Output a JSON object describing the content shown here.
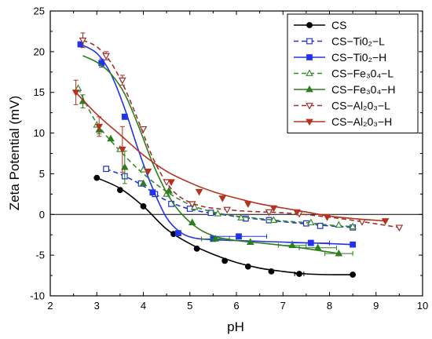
{
  "chart_data": {
    "type": "line",
    "xlabel": "pH",
    "ylabel": "Zeta Potential (mV)",
    "xlim": [
      2,
      10
    ],
    "ylim": [
      -10,
      25
    ],
    "xticks": [
      2,
      3,
      4,
      5,
      6,
      7,
      8,
      9,
      10
    ],
    "yticks": [
      -10,
      -5,
      0,
      5,
      10,
      15,
      20,
      25
    ],
    "zero_line": true,
    "legend_position": "top-right",
    "series": [
      {
        "name": "CS",
        "color": "#000000",
        "marker": "circle",
        "filled": true,
        "dashed": false,
        "x": [
          3.0,
          3.5,
          4.0,
          4.65,
          5.15,
          5.75,
          6.25,
          6.75,
          7.35,
          8.5
        ],
        "y": [
          4.5,
          3.0,
          1.0,
          -2.4,
          -4.2,
          -5.7,
          -6.4,
          -7.0,
          -7.3,
          -7.4
        ],
        "xerr": [
          0,
          0,
          0,
          0,
          0,
          0,
          0,
          0,
          0.1,
          0
        ],
        "yerr": [
          0,
          0,
          0,
          0,
          0,
          0,
          0,
          0,
          0,
          0
        ],
        "curve_x": [
          3.0,
          3.5,
          4.0,
          4.5,
          5.0,
          5.5,
          6.0,
          6.5,
          7.0,
          7.5,
          8.0,
          8.5
        ],
        "curve_y": [
          4.5,
          3.2,
          1.0,
          -1.8,
          -3.6,
          -4.9,
          -5.9,
          -6.6,
          -7.0,
          -7.3,
          -7.4,
          -7.4
        ]
      },
      {
        "name": "CS−Ti0₂−L",
        "color": "#2233cc",
        "marker": "square",
        "filled": false,
        "dashed": true,
        "x": [
          3.2,
          3.6,
          3.95,
          4.25,
          4.6,
          5.0,
          5.45,
          6.2,
          6.7,
          7.5,
          7.8,
          8.5
        ],
        "y": [
          5.6,
          4.7,
          3.8,
          2.5,
          1.3,
          0.7,
          0.2,
          -0.5,
          -0.7,
          -1.1,
          -1.4,
          -1.6
        ],
        "xerr": [
          0,
          0,
          0,
          0,
          0,
          0,
          0,
          0,
          0,
          0,
          0,
          0
        ],
        "yerr": [
          0,
          0,
          0,
          0,
          0,
          0,
          0,
          0,
          0,
          0,
          0,
          0
        ],
        "curve_x": [
          3.2,
          3.6,
          4.0,
          4.4,
          4.8,
          5.2,
          5.8,
          6.5,
          7.2,
          8.0,
          8.5
        ],
        "curve_y": [
          5.6,
          4.7,
          3.5,
          2.0,
          1.0,
          0.4,
          -0.1,
          -0.6,
          -1.0,
          -1.4,
          -1.6
        ]
      },
      {
        "name": "CS−Ti0₂−H",
        "color": "#2233ee",
        "marker": "square",
        "filled": true,
        "dashed": false,
        "x": [
          2.65,
          3.1,
          3.6,
          4.2,
          4.75,
          5.5,
          6.05,
          7.6,
          8.5
        ],
        "y": [
          20.9,
          18.6,
          12.0,
          2.7,
          -2.3,
          -3.0,
          -2.7,
          -3.5,
          -3.7
        ],
        "xerr": [
          0,
          0,
          0,
          0,
          0,
          0,
          0.6,
          0.4,
          0
        ],
        "yerr": [
          0.3,
          0.5,
          0,
          0,
          0,
          0,
          0,
          0,
          0
        ],
        "curve_x": [
          2.65,
          3.0,
          3.3,
          3.6,
          3.9,
          4.2,
          4.5,
          4.8,
          5.1,
          5.5,
          6.0,
          6.5,
          7.0,
          7.6,
          8.5
        ],
        "curve_y": [
          20.9,
          19.8,
          17.3,
          13.0,
          7.8,
          3.2,
          -0.4,
          -2.2,
          -2.9,
          -3.1,
          -3.2,
          -3.3,
          -3.4,
          -3.5,
          -3.7
        ]
      },
      {
        "name": "CS−Fe₃0₄−L",
        "color": "#3a8a2e",
        "marker": "triangle-up",
        "filled": false,
        "dashed": true,
        "x": [
          2.6,
          3.0,
          3.5,
          4.0,
          4.5,
          5.1,
          5.6,
          6.1,
          6.8,
          7.6,
          8.2,
          8.5
        ],
        "y": [
          15.5,
          11.0,
          8.0,
          5.5,
          2.5,
          0.9,
          0.1,
          -0.4,
          -0.7,
          -1.0,
          -1.3,
          -1.5
        ],
        "xerr": [
          0,
          0,
          0,
          0,
          0,
          0,
          0,
          0,
          0,
          0,
          0,
          0
        ],
        "yerr": [
          0,
          0,
          0,
          0,
          0,
          0,
          0,
          0,
          0,
          0,
          0,
          0
        ],
        "curve_x": [
          2.6,
          3.0,
          3.5,
          4.0,
          4.5,
          5.0,
          5.5,
          6.0,
          6.5,
          7.0,
          7.5,
          8.0,
          8.5
        ],
        "curve_y": [
          15.5,
          11.2,
          7.8,
          5.0,
          2.8,
          1.2,
          0.3,
          -0.2,
          -0.5,
          -0.8,
          -1.0,
          -1.3,
          -1.5
        ]
      },
      {
        "name": "CS−Fe₃0₄−H",
        "color": "#2e7d1e",
        "marker": "triangle-up",
        "filled": true,
        "dashed": false,
        "x": [
          2.7,
          3.05,
          3.3,
          3.6,
          4.0,
          4.55,
          5.05,
          5.55,
          6.3,
          7.2,
          7.75,
          8.2
        ],
        "y": [
          13.9,
          10.4,
          9.3,
          5.8,
          3.8,
          2.9,
          -1.0,
          -3.0,
          -3.4,
          -3.8,
          -4.1,
          -4.8
        ],
        "xerr": [
          0,
          0,
          0,
          0,
          0,
          0,
          0,
          0.3,
          0,
          0.3,
          0.4,
          0.3
        ],
        "yerr": [
          0.8,
          0.5,
          0,
          2.0,
          0,
          0,
          0,
          0,
          0,
          0,
          0,
          0
        ],
        "curve_x": [
          2.7,
          3.0,
          3.3,
          3.6,
          3.9,
          4.2,
          4.5,
          4.8,
          5.2,
          5.6,
          6.0,
          6.5,
          7.0,
          7.5,
          8.2
        ],
        "curve_y": [
          19.5,
          18.7,
          17.3,
          14.8,
          10.8,
          6.3,
          2.7,
          0.2,
          -1.8,
          -2.8,
          -3.2,
          -3.5,
          -3.8,
          -4.2,
          -4.8
        ]
      },
      {
        "name": "CS−Al₂0₃−L",
        "color": "#a0302a",
        "marker": "triangle-down",
        "filled": false,
        "dashed": true,
        "x": [
          2.7,
          3.2,
          3.55,
          4.0,
          4.5,
          5.05,
          5.8,
          6.7,
          7.35,
          7.95,
          8.7,
          9.5
        ],
        "y": [
          21.4,
          19.5,
          16.5,
          10.5,
          4.0,
          1.3,
          0.6,
          0.3,
          0.1,
          -0.3,
          -0.9,
          -1.6
        ],
        "xerr": [
          0,
          0,
          0,
          0,
          0,
          0,
          0,
          0,
          0,
          0,
          0,
          0
        ],
        "yerr": [
          0.9,
          0.5,
          0.6,
          0,
          0,
          0,
          0,
          0,
          0,
          0,
          0,
          0
        ],
        "curve_x": [
          2.7,
          3.0,
          3.3,
          3.6,
          3.9,
          4.2,
          4.5,
          4.8,
          5.2,
          5.6,
          6.2,
          7.0,
          7.8,
          8.6,
          9.5
        ],
        "curve_y": [
          21.4,
          20.6,
          18.7,
          15.5,
          11.4,
          7.0,
          3.9,
          2.1,
          1.1,
          0.7,
          0.4,
          0.2,
          -0.2,
          -0.8,
          -1.6
        ]
      },
      {
        "name": "CS−Al₂0₃−H",
        "color": "#b5321f",
        "marker": "triangle-down",
        "filled": true,
        "dashed": false,
        "x": [
          2.55,
          3.05,
          3.55,
          4.1,
          4.6,
          5.2,
          5.7,
          6.25,
          6.8,
          7.3,
          7.95,
          9.2
        ],
        "y": [
          15.0,
          10.8,
          8.0,
          5.3,
          4.0,
          2.8,
          2.0,
          1.3,
          0.8,
          0.3,
          -0.3,
          -0.8
        ],
        "xerr": [
          0,
          0,
          0,
          0,
          0,
          0,
          0,
          0,
          0,
          0,
          0,
          0
        ],
        "yerr": [
          1.5,
          1.2,
          2.8,
          0,
          0,
          0,
          0,
          0,
          0,
          0,
          0,
          0
        ],
        "curve_x": [
          2.55,
          3.0,
          3.5,
          4.0,
          4.5,
          5.0,
          5.5,
          6.0,
          6.5,
          7.0,
          7.5,
          8.0,
          8.5,
          9.2
        ],
        "curve_y": [
          15.0,
          12.3,
          9.8,
          7.3,
          5.3,
          3.9,
          2.8,
          2.0,
          1.3,
          0.8,
          0.3,
          -0.2,
          -0.5,
          -0.8
        ]
      }
    ]
  }
}
